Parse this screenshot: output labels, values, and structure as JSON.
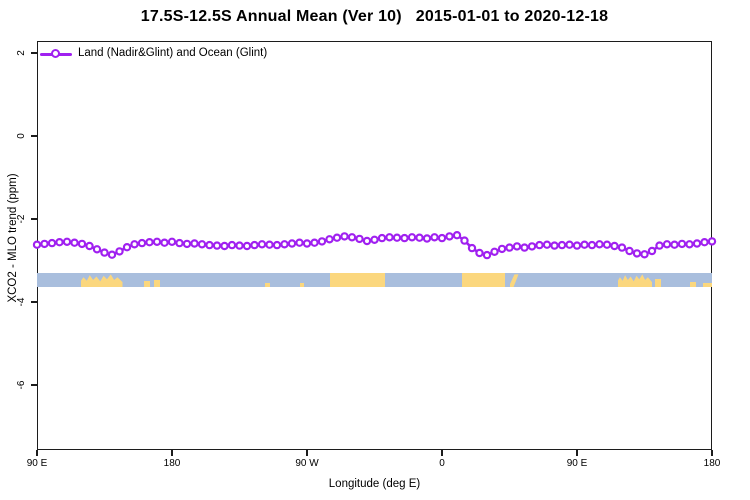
{
  "chart_data": {
    "type": "line",
    "title": "17.5S-12.5S Annual Mean (Ver 10)   2015-01-01 to 2020-12-18",
    "xlabel": "Longitude (deg E)",
    "ylabel": "XCO2 - MLO trend (ppm)",
    "legend": {
      "position": "top-left-inside",
      "entries": [
        {
          "label": "Land (Nadir&Glint) and Ocean (Glint)",
          "color": "#A020F0",
          "marker": "open-circle-on-line"
        }
      ]
    },
    "x_axis": {
      "label": "Longitude (deg E)",
      "tick_labels": [
        "90 E",
        "180",
        "90 W",
        "0",
        "90 E",
        "180"
      ],
      "tick_positions_deg_east_of_90E": [
        0,
        90,
        180,
        270,
        360,
        450
      ],
      "range_deg_east_of_90E": [
        0,
        450
      ],
      "note": "axis wraps the globe starting at 90E: 90E>180>90W>0>90E>180"
    },
    "y_axis": {
      "label": "XCO2 - MLO trend (ppm)",
      "tick_labels": [
        "2",
        "0",
        "-2",
        "-4",
        "-6"
      ],
      "tick_values": [
        2,
        0,
        -2,
        -4,
        -6
      ],
      "ylim": [
        -7.55,
        2.3
      ],
      "tick_label_rotation_deg": 90
    },
    "grid": false,
    "series": [
      {
        "name": "Land (Nadir&Glint) and Ocean (Glint)",
        "color": "#A020F0",
        "marker": "open-circle",
        "x_start_deg": 0,
        "x_step_deg": 5,
        "values": [
          -2.62,
          -2.6,
          -2.58,
          -2.56,
          -2.55,
          -2.57,
          -2.6,
          -2.65,
          -2.73,
          -2.81,
          -2.86,
          -2.78,
          -2.68,
          -2.61,
          -2.58,
          -2.56,
          -2.55,
          -2.57,
          -2.55,
          -2.58,
          -2.6,
          -2.59,
          -2.61,
          -2.63,
          -2.64,
          -2.65,
          -2.63,
          -2.64,
          -2.65,
          -2.63,
          -2.61,
          -2.62,
          -2.63,
          -2.61,
          -2.59,
          -2.57,
          -2.59,
          -2.57,
          -2.54,
          -2.49,
          -2.45,
          -2.42,
          -2.44,
          -2.48,
          -2.53,
          -2.5,
          -2.46,
          -2.44,
          -2.45,
          -2.46,
          -2.44,
          -2.45,
          -2.47,
          -2.44,
          -2.46,
          -2.42,
          -2.39,
          -2.52,
          -2.7,
          -2.82,
          -2.87,
          -2.79,
          -2.72,
          -2.69,
          -2.66,
          -2.69,
          -2.66,
          -2.63,
          -2.62,
          -2.64,
          -2.63,
          -2.62,
          -2.64,
          -2.62,
          -2.63,
          -2.61,
          -2.62,
          -2.65,
          -2.69,
          -2.77,
          -2.83,
          -2.85,
          -2.77,
          -2.64,
          -2.61,
          -2.62,
          -2.6,
          -2.61,
          -2.59,
          -2.56,
          -2.54
        ]
      }
    ],
    "surface_band": {
      "description": "land/ocean strip along longitude",
      "value_top": -3.3,
      "value_bottom": -3.64,
      "ocean_color": "#A9BEDD",
      "land_color": "#FBD77E",
      "land_segments_deg": [
        {
          "start": 29,
          "end": 57,
          "shape": "jagged",
          "height": 1.0
        },
        {
          "start": 71,
          "end": 75,
          "shape": "rect",
          "height": 0.45
        },
        {
          "start": 78,
          "end": 82,
          "shape": "rect",
          "height": 0.5
        },
        {
          "start": 152,
          "end": 155,
          "shape": "rect",
          "height": 0.3
        },
        {
          "start": 175,
          "end": 178,
          "shape": "rect",
          "height": 0.3
        },
        {
          "start": 195,
          "end": 232,
          "shape": "rect",
          "height": 1.0
        },
        {
          "start": 283,
          "end": 312,
          "shape": "rect",
          "height": 1.0
        },
        {
          "start": 315,
          "end": 321,
          "shape": "slant",
          "height": 0.9
        },
        {
          "start": 387,
          "end": 410,
          "shape": "jagged",
          "height": 1.0
        },
        {
          "start": 412,
          "end": 416,
          "shape": "rect",
          "height": 0.6
        },
        {
          "start": 435,
          "end": 439,
          "shape": "rect",
          "height": 0.35
        },
        {
          "start": 444,
          "end": 450,
          "shape": "rect",
          "height": 0.3
        }
      ]
    }
  }
}
